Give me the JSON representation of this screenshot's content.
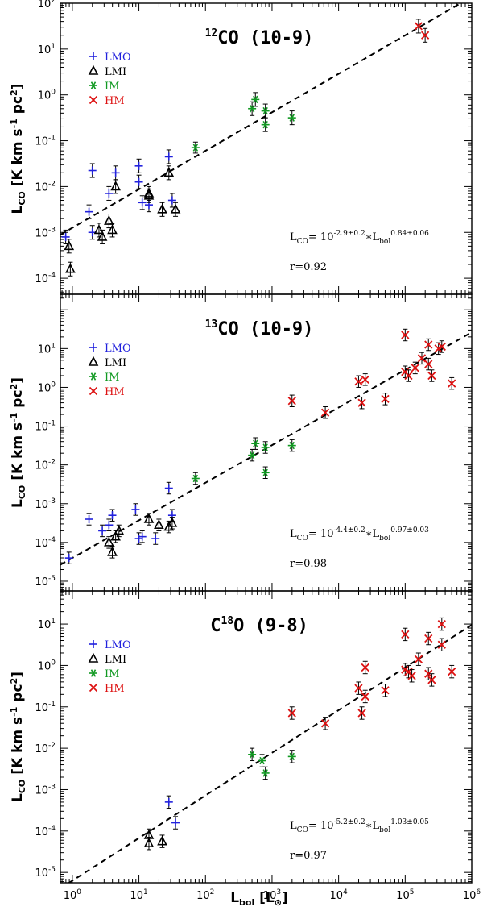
{
  "figure": {
    "xlabel": {
      "main": "L",
      "sub": "bol",
      "unit_open": " [L",
      "unit_sym": "⊙",
      "unit_close": "]"
    },
    "ylabel": {
      "main": "L",
      "sub": "CO",
      "rest1": " [K km s",
      "sup1": "-1",
      "rest2": " pc",
      "sup2": "2",
      "rest3": "]"
    },
    "x_ticks": [
      {
        "value": -0.0,
        "label": "10",
        "exp": "0"
      },
      {
        "value": 1,
        "label": "10",
        "exp": "1"
      },
      {
        "value": 2,
        "label": "10",
        "exp": "2"
      },
      {
        "value": 3,
        "label": "10",
        "exp": "3"
      },
      {
        "value": 4,
        "label": "10",
        "exp": "4"
      },
      {
        "value": 5,
        "label": "10",
        "exp": "5"
      },
      {
        "value": 6,
        "label": "10",
        "exp": "6"
      }
    ],
    "xlim": [
      -0.18,
      6
    ]
  },
  "legend": [
    {
      "key": "LMO",
      "label": "LMO",
      "marker": "+",
      "color": "#2222dd"
    },
    {
      "key": "LMI",
      "label": "LMI",
      "marker": "triangle",
      "color": "#000000"
    },
    {
      "key": "IM",
      "label": "IM",
      "marker": "*",
      "color": "#119922"
    },
    {
      "key": "HM",
      "label": "HM",
      "marker": "x",
      "color": "#dd1111"
    }
  ],
  "chart_data": [
    {
      "type": "scatter",
      "title": {
        "pre": "",
        "sup": "12",
        "post": "CO (10-9)"
      },
      "ylim": [
        -4.35,
        2
      ],
      "y_ticks": [
        -4,
        -3,
        -2,
        -1,
        0,
        1,
        2
      ],
      "fit": {
        "intercept": -2.9,
        "slope": 0.84,
        "eq_pre": "L",
        "eq_sub1": "CO",
        "eq_mid": "= 10",
        "eq_sup1": "-2.9±0.2",
        "eq_op": "∗L",
        "eq_sub2": "bol",
        "eq_sup2": "0.84±0.06",
        "r_text": "r=0.92"
      },
      "series": [
        {
          "name": "LMO",
          "points": [
            [
              -0.1,
              -3.1,
              0.15
            ],
            [
              0.25,
              -2.55,
              0.15
            ],
            [
              0.3,
              -1.65,
              0.15
            ],
            [
              0.3,
              -3.0,
              0.15
            ],
            [
              0.55,
              -2.15,
              0.15
            ],
            [
              0.65,
              -1.7,
              0.15
            ],
            [
              1.0,
              -1.55,
              0.15
            ],
            [
              1.0,
              -1.9,
              0.15
            ],
            [
              1.05,
              -2.35,
              0.15
            ],
            [
              1.15,
              -2.4,
              0.15
            ],
            [
              1.45,
              -1.35,
              0.15
            ],
            [
              1.5,
              -2.3,
              0.15
            ]
          ]
        },
        {
          "name": "LMI",
          "points": [
            [
              -0.05,
              -3.3,
              0.15
            ],
            [
              -0.03,
              -3.8,
              0.15
            ],
            [
              0.4,
              -2.95,
              0.15
            ],
            [
              0.45,
              -3.1,
              0.15
            ],
            [
              0.55,
              -2.75,
              0.15
            ],
            [
              0.6,
              -2.95,
              0.15
            ],
            [
              0.65,
              -2.0,
              0.15
            ],
            [
              1.15,
              -2.15,
              0.15
            ],
            [
              1.15,
              -2.2,
              0.15
            ],
            [
              1.35,
              -2.5,
              0.15
            ],
            [
              1.55,
              -2.5,
              0.15
            ],
            [
              1.45,
              -1.7,
              0.15
            ]
          ]
        },
        {
          "name": "IM",
          "points": [
            [
              1.85,
              -1.15,
              0.12
            ],
            [
              2.7,
              -0.3,
              0.15
            ],
            [
              2.75,
              -0.1,
              0.15
            ],
            [
              2.9,
              -0.35,
              0.15
            ],
            [
              2.9,
              -0.65,
              0.15
            ],
            [
              3.3,
              -0.5,
              0.15
            ]
          ]
        },
        {
          "name": "HM",
          "points": [
            [
              5.2,
              1.5,
              0.15
            ],
            [
              5.3,
              1.3,
              0.15
            ]
          ]
        }
      ]
    },
    {
      "type": "scatter",
      "title": {
        "pre": "",
        "sup": "13",
        "post": "CO (10-9)"
      },
      "ylim": [
        -5.25,
        2.4
      ],
      "y_ticks": [
        -5,
        -4,
        -3,
        -2,
        -1,
        0,
        1
      ],
      "fit": {
        "intercept": -4.4,
        "slope": 0.97,
        "eq_pre": "L",
        "eq_sub1": "CO",
        "eq_mid": "= 10",
        "eq_sup1": "-4.4±0.2",
        "eq_op": "∗L",
        "eq_sub2": "bol",
        "eq_sup2": "0.97±0.03",
        "r_text": "r=0.98"
      },
      "series": [
        {
          "name": "LMO",
          "points": [
            [
              -0.05,
              -4.4,
              0.15
            ],
            [
              0.25,
              -3.4,
              0.15
            ],
            [
              0.45,
              -3.7,
              0.15
            ],
            [
              0.55,
              -3.55,
              0.15
            ],
            [
              0.6,
              -3.3,
              0.15
            ],
            [
              0.95,
              -3.15,
              0.15
            ],
            [
              1.0,
              -3.9,
              0.15
            ],
            [
              1.05,
              -3.85,
              0.15
            ],
            [
              1.25,
              -3.9,
              0.15
            ],
            [
              1.45,
              -2.6,
              0.15
            ],
            [
              1.5,
              -3.3,
              0.15
            ]
          ]
        },
        {
          "name": "LMI",
          "points": [
            [
              0.55,
              -4.0,
              0.15
            ],
            [
              0.6,
              -4.25,
              0.15
            ],
            [
              0.65,
              -3.85,
              0.15
            ],
            [
              0.7,
              -3.7,
              0.15
            ],
            [
              1.15,
              -3.4,
              0.15
            ],
            [
              1.3,
              -3.55,
              0.15
            ],
            [
              1.45,
              -3.6,
              0.15
            ],
            [
              1.5,
              -3.5,
              0.15
            ]
          ]
        },
        {
          "name": "IM",
          "points": [
            [
              1.85,
              -2.35,
              0.15
            ],
            [
              2.7,
              -1.75,
              0.15
            ],
            [
              2.75,
              -1.45,
              0.15
            ],
            [
              2.9,
              -1.55,
              0.15
            ],
            [
              2.9,
              -2.2,
              0.15
            ],
            [
              3.3,
              -1.5,
              0.15
            ]
          ]
        },
        {
          "name": "HM",
          "points": [
            [
              3.3,
              -0.35,
              0.15
            ],
            [
              3.8,
              -0.65,
              0.15
            ],
            [
              4.3,
              0.15,
              0.15
            ],
            [
              4.35,
              -0.4,
              0.15
            ],
            [
              4.4,
              0.2,
              0.15
            ],
            [
              4.7,
              -0.3,
              0.15
            ],
            [
              5.0,
              0.4,
              0.15
            ],
            [
              5.0,
              1.35,
              0.15
            ],
            [
              5.05,
              0.3,
              0.15
            ],
            [
              5.15,
              0.5,
              0.15
            ],
            [
              5.25,
              0.75,
              0.15
            ],
            [
              5.35,
              1.1,
              0.15
            ],
            [
              5.35,
              0.6,
              0.15
            ],
            [
              5.4,
              0.3,
              0.15
            ],
            [
              5.5,
              1.0,
              0.15
            ],
            [
              5.55,
              1.05,
              0.15
            ],
            [
              5.7,
              0.1,
              0.15
            ]
          ]
        }
      ]
    },
    {
      "type": "scatter",
      "title": {
        "pre": "C",
        "sup": "18",
        "post": "O (9-8)"
      },
      "ylim": [
        -5.25,
        1.8
      ],
      "y_ticks": [
        -5,
        -4,
        -3,
        -2,
        -1,
        0,
        1
      ],
      "fit": {
        "intercept": -5.2,
        "slope": 1.03,
        "eq_pre": "L",
        "eq_sub1": "CO",
        "eq_mid": "= 10",
        "eq_sup1": "-5.2±0.2",
        "eq_op": "∗L",
        "eq_sub2": "bol",
        "eq_sup2": "1.03±0.05",
        "r_text": "r=0.97"
      },
      "series": [
        {
          "name": "LMO",
          "points": [
            [
              1.45,
              -3.3,
              0.15
            ],
            [
              1.55,
              -3.8,
              0.15
            ]
          ]
        },
        {
          "name": "LMI",
          "points": [
            [
              1.15,
              -4.1,
              0.15
            ],
            [
              1.15,
              -4.3,
              0.15
            ],
            [
              1.35,
              -4.25,
              0.15
            ]
          ]
        },
        {
          "name": "IM",
          "points": [
            [
              2.7,
              -2.15,
              0.15
            ],
            [
              2.85,
              -2.3,
              0.15
            ],
            [
              2.9,
              -2.6,
              0.15
            ],
            [
              3.3,
              -2.2,
              0.15
            ]
          ]
        },
        {
          "name": "HM",
          "points": [
            [
              3.3,
              -1.15,
              0.15
            ],
            [
              3.8,
              -1.4,
              0.15
            ],
            [
              4.3,
              -0.55,
              0.15
            ],
            [
              4.35,
              -1.15,
              0.15
            ],
            [
              4.4,
              -0.05,
              0.15
            ],
            [
              4.4,
              -0.75,
              0.15
            ],
            [
              4.7,
              -0.6,
              0.15
            ],
            [
              5.0,
              0.75,
              0.15
            ],
            [
              5.0,
              -0.1,
              0.15
            ],
            [
              5.05,
              -0.15,
              0.15
            ],
            [
              5.1,
              -0.25,
              0.15
            ],
            [
              5.2,
              0.15,
              0.15
            ],
            [
              5.35,
              0.65,
              0.15
            ],
            [
              5.35,
              -0.2,
              0.15
            ],
            [
              5.4,
              -0.35,
              0.15
            ],
            [
              5.55,
              0.5,
              0.15
            ],
            [
              5.55,
              1.0,
              0.15
            ],
            [
              5.7,
              -0.15,
              0.15
            ]
          ]
        }
      ]
    }
  ]
}
